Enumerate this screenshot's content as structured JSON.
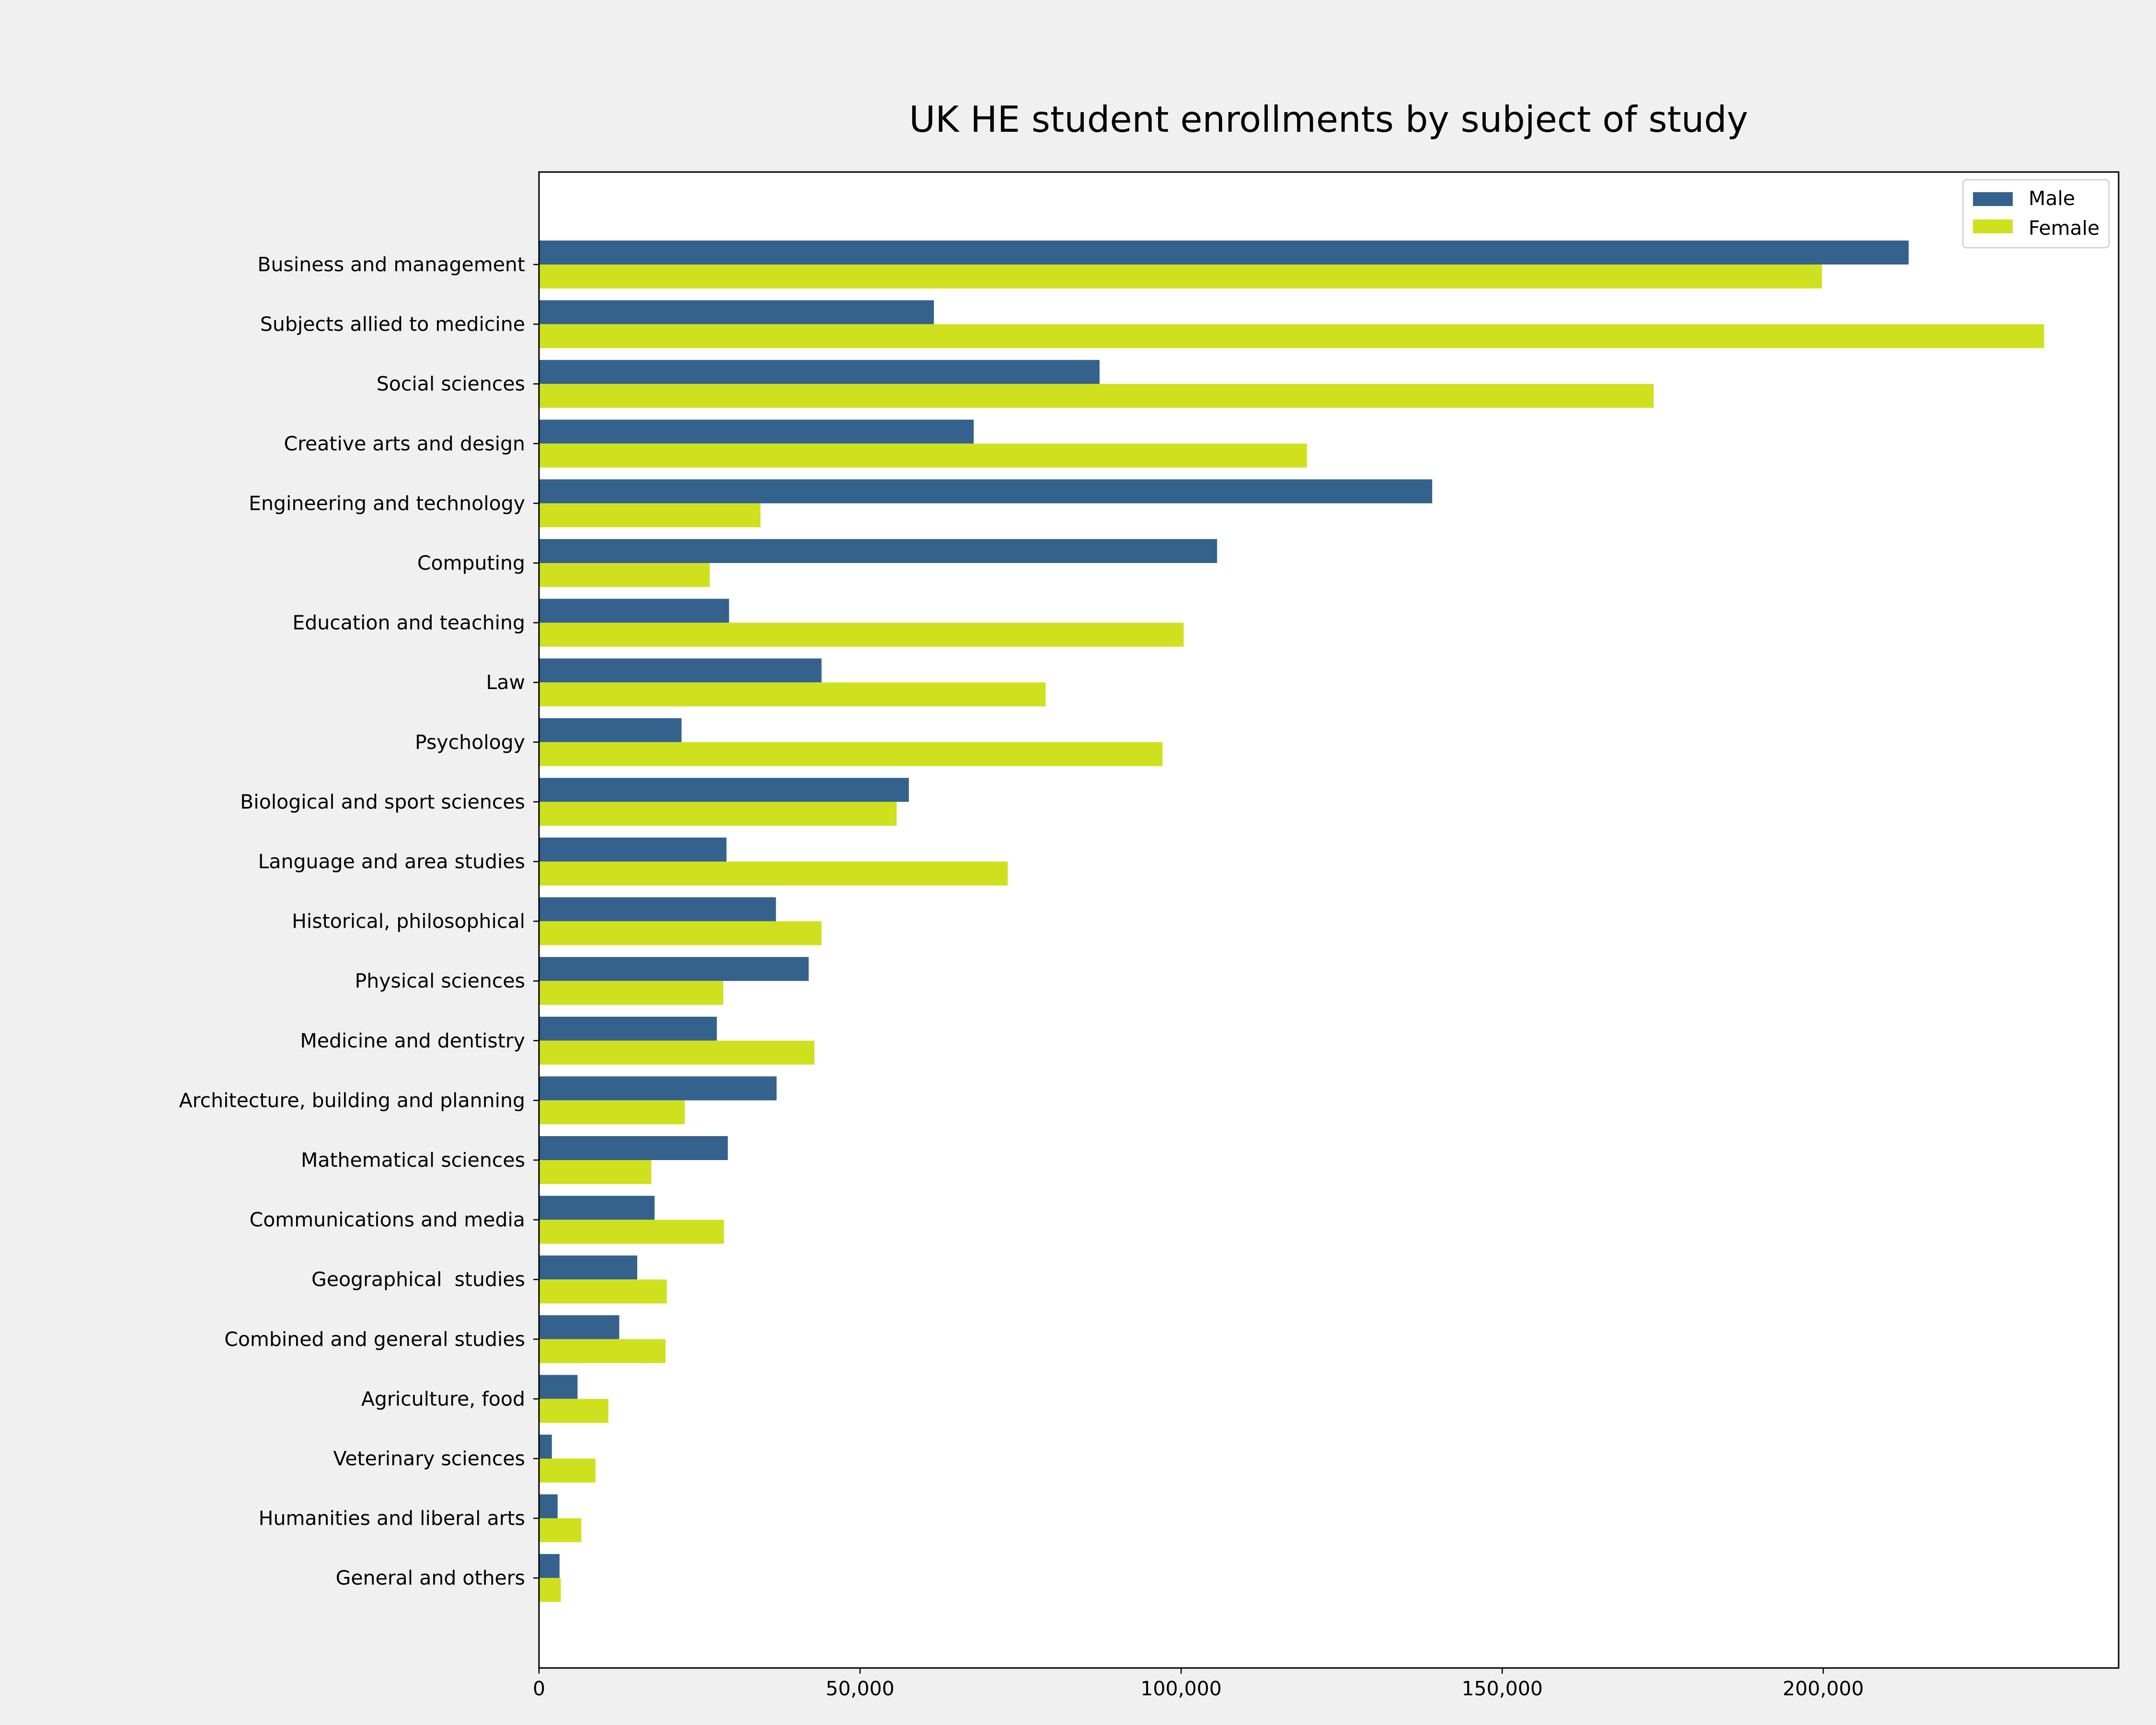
{
  "chart_data": {
    "type": "bar",
    "orientation": "horizontal",
    "title": "UK HE student enrollments by subject of study",
    "xlabel": "",
    "ylabel": "",
    "xlim": [
      0,
      246000
    ],
    "xticks": [
      0,
      50000,
      100000,
      150000,
      200000
    ],
    "xtick_labels": [
      "0",
      "50,000",
      "100,000",
      "150,000",
      "200,000"
    ],
    "grid": false,
    "legend_position": "top-right",
    "categories": [
      "Business and management",
      "Subjects allied to medicine",
      "Social sciences",
      "Creative arts and design",
      "Engineering and technology",
      "Computing",
      "Education and teaching",
      "Law",
      "Psychology",
      "Biological and sport sciences",
      "Language and area studies",
      "Historical, philosophical",
      "Physical sciences",
      "Medicine and dentistry",
      "Architecture, building and planning",
      "Mathematical sciences",
      "Communications and media",
      "Geographical  studies",
      "Combined and general studies",
      "Agriculture, food",
      "Veterinary sciences",
      "Humanities and liberal arts",
      "General and others"
    ],
    "series": [
      {
        "name": "Male",
        "color": "#34628d",
        "values": [
          213300,
          61500,
          87300,
          67700,
          139100,
          105600,
          29600,
          44000,
          22200,
          57600,
          29200,
          36900,
          42000,
          27700,
          37000,
          29400,
          18000,
          15300,
          12500,
          6000,
          2000,
          2900,
          3200
        ]
      },
      {
        "name": "Female",
        "color": "#cfe11e",
        "values": [
          199800,
          234400,
          173600,
          119600,
          34500,
          26600,
          100400,
          78900,
          97100,
          55700,
          73000,
          44000,
          28700,
          42900,
          22700,
          17500,
          28800,
          19900,
          19700,
          10800,
          8800,
          6600,
          3400
        ]
      }
    ]
  }
}
